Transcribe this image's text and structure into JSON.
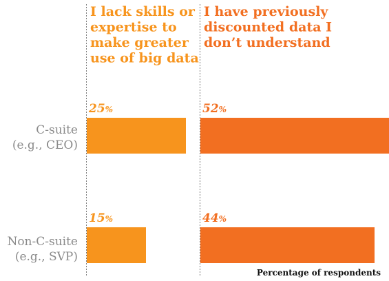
{
  "chart_data": {
    "type": "bar",
    "orientation": "horizontal",
    "categories": [
      [
        "C-suite",
        "(e.g., CEO)"
      ],
      [
        "Non-C-suite",
        "(e.g., SVP)"
      ]
    ],
    "series": [
      {
        "name": [
          "I lack skills or",
          "expertise to",
          "make greater",
          "use of big data"
        ],
        "values": [
          25,
          15
        ],
        "color": "#f7941d"
      },
      {
        "name": [
          "I have previously",
          "discounted data I",
          "don’t understand"
        ],
        "values": [
          52,
          44
        ],
        "color": "#f26f21"
      }
    ],
    "value_suffix": "%",
    "footnote": "Percentage of respondents",
    "xlim": [
      0,
      100
    ],
    "grid": false,
    "layout_note_removed": true
  },
  "colors": {
    "category_text": "#8a8a8a",
    "separator": "#777777",
    "footnote_text": "#111111"
  }
}
